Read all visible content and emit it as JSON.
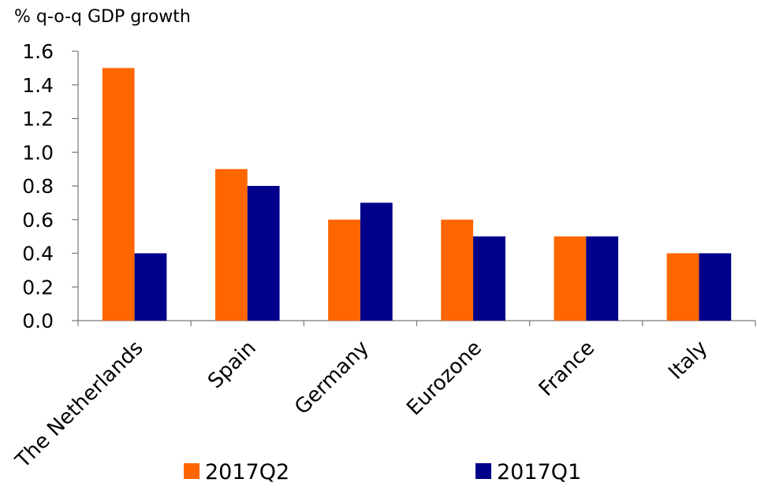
{
  "chart_data": {
    "type": "bar",
    "unit_label": "% q-o-q GDP growth",
    "categories": [
      "The Netherlands",
      "Spain",
      "Germany",
      "Eurozone",
      "France",
      "Italy"
    ],
    "series": [
      {
        "name": "2017Q2",
        "color": "#FF6600",
        "values": [
          1.5,
          0.9,
          0.6,
          0.6,
          0.5,
          0.4
        ]
      },
      {
        "name": "2017Q1",
        "color": "#00008B",
        "values": [
          0.4,
          0.8,
          0.7,
          0.5,
          0.5,
          0.4
        ]
      }
    ],
    "y_ticks": [
      "0.0",
      "0.2",
      "0.4",
      "0.6",
      "0.8",
      "1.0",
      "1.2",
      "1.4",
      "1.6"
    ],
    "ylim": [
      0,
      1.6
    ],
    "grid": false,
    "legend_position": "bottom",
    "category_label_rotation": "-45 degrees"
  }
}
